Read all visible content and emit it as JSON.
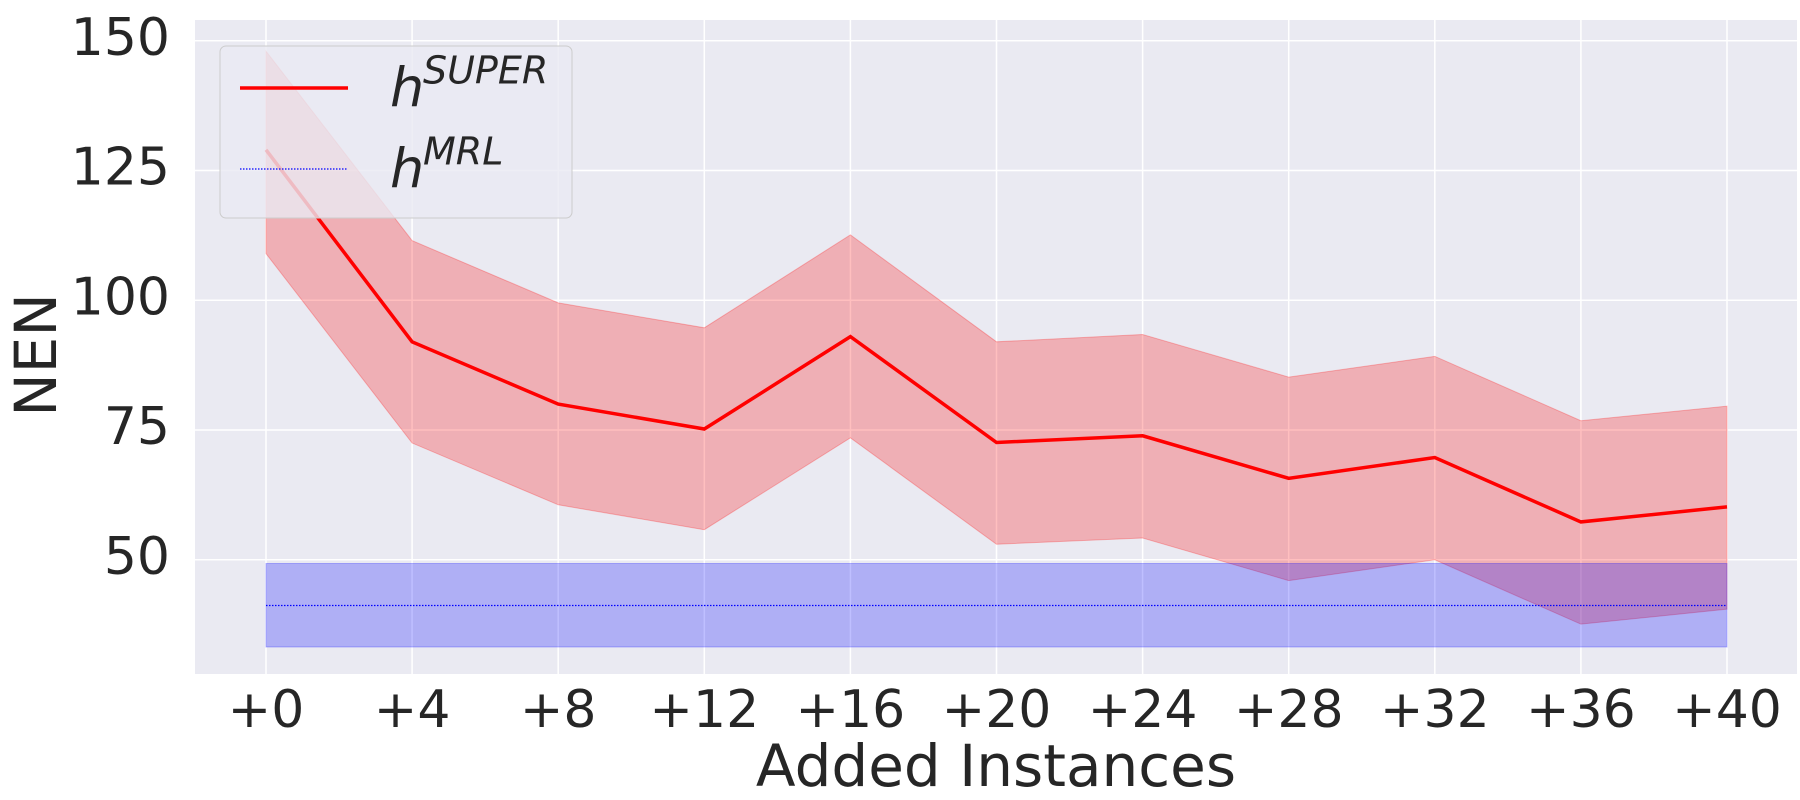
{
  "chart_data": {
    "type": "line",
    "x_label": "Added Instances",
    "y_label": "NEN",
    "categories": [
      "+0",
      "+4",
      "+8",
      "+12",
      "+16",
      "+20",
      "+24",
      "+28",
      "+32",
      "+36",
      "+40"
    ],
    "series": [
      {
        "name": "h",
        "superscript": "SUPER",
        "color": "#ff0000",
        "line_style": "solid",
        "values": [
          129,
          92,
          80,
          75.2,
          93,
          72.6,
          73.9,
          65.7,
          69.7,
          57.3,
          60.2
        ],
        "upper": [
          148,
          111.5,
          99.5,
          94.7,
          112.6,
          92,
          93.4,
          85.2,
          89.2,
          76.8,
          79.6
        ],
        "lower": [
          109,
          72.5,
          60.6,
          55.8,
          73.5,
          53,
          54.2,
          46,
          50,
          37.6,
          40.5
        ]
      },
      {
        "name": "h",
        "superscript": "MRL",
        "color": "#0000ff",
        "line_style": "dotted",
        "values": [
          41.2,
          41.2,
          41.2,
          41.2,
          41.2,
          41.2,
          41.2,
          41.2,
          41.2,
          41.2,
          41.2
        ],
        "upper": [
          49.3,
          49.3,
          49.3,
          49.3,
          49.3,
          49.3,
          49.3,
          49.3,
          49.3,
          49.3,
          49.3
        ],
        "lower": [
          33.2,
          33.2,
          33.2,
          33.2,
          33.2,
          33.2,
          33.2,
          33.2,
          33.2,
          33.2,
          33.2
        ]
      }
    ],
    "ylim": [
      28,
      154
    ],
    "yticks": [
      50,
      75,
      100,
      125,
      150
    ],
    "grid": true,
    "legend": "upper left"
  }
}
